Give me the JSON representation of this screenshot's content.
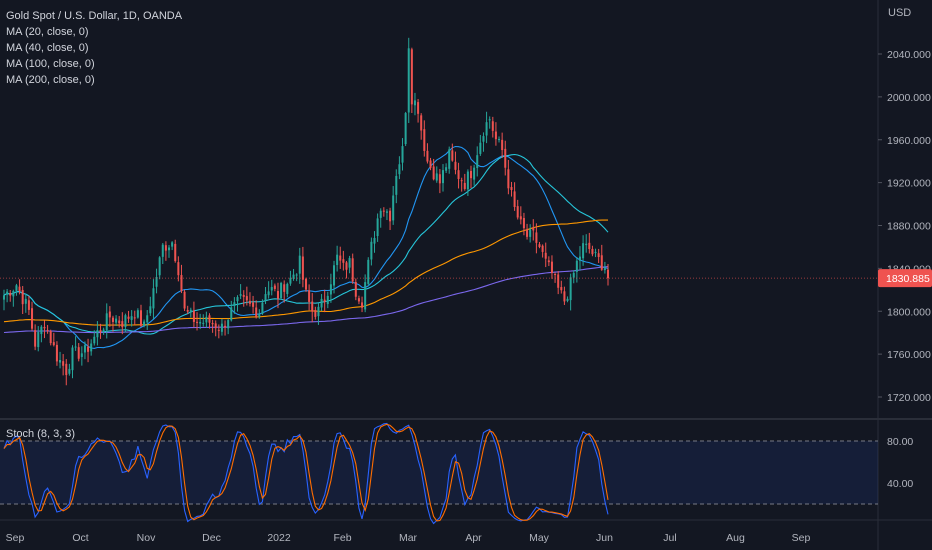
{
  "header": {
    "title": "Gold Spot / U.S. Dollar, 1D, OANDA",
    "indicators": [
      "MA (20, close, 0)",
      "MA (40, close, 0)",
      "MA (100, close, 0)",
      "MA (200, close, 0)"
    ]
  },
  "price_axis": {
    "currency": "USD",
    "current_price_label": "1830.885"
  },
  "stoch_pane": {
    "label": "Stoch (8, 3, 3)"
  },
  "chart_data": [
    {
      "type": "candlestick",
      "title": "Gold Spot / U.S. Dollar, 1D, OANDA",
      "y_unit": "USD",
      "y_ticks": [
        1720,
        1760,
        1800,
        1840,
        1880,
        1920,
        1960,
        2000,
        2040
      ],
      "y_tick_labels": [
        "1720.000",
        "1760.000",
        "1800.000",
        "1840.000",
        "1880.000",
        "1920.000",
        "1960.000",
        "2000.000",
        "2040.000"
      ],
      "ylim": [
        1700,
        2080
      ],
      "x_labels": [
        "Sep",
        "Oct",
        "Nov",
        "Dec",
        "2022",
        "Feb",
        "Mar",
        "Apr",
        "May",
        "Jun",
        "Jul",
        "Aug",
        "Sep"
      ],
      "last_price": 1830.885,
      "close_path": [
        [
          0,
          1815
        ],
        [
          4,
          1825
        ],
        [
          8,
          1800
        ],
        [
          10,
          1770
        ],
        [
          13,
          1790
        ],
        [
          17,
          1758
        ],
        [
          20,
          1745
        ],
        [
          22,
          1760
        ],
        [
          26,
          1762
        ],
        [
          30,
          1780
        ],
        [
          34,
          1795
        ],
        [
          38,
          1790
        ],
        [
          42,
          1800
        ],
        [
          45,
          1785
        ],
        [
          48,
          1820
        ],
        [
          51,
          1860
        ],
        [
          54,
          1865
        ],
        [
          56,
          1840
        ],
        [
          58,
          1800
        ],
        [
          62,
          1790
        ],
        [
          66,
          1790
        ],
        [
          70,
          1785
        ],
        [
          73,
          1800
        ],
        [
          76,
          1810
        ],
        [
          79,
          1805
        ],
        [
          82,
          1800
        ],
        [
          84,
          1820
        ],
        [
          86,
          1820
        ],
        [
          88,
          1815
        ],
        [
          90,
          1825
        ],
        [
          92,
          1830
        ],
        [
          95,
          1845
        ],
        [
          97,
          1815
        ],
        [
          99,
          1800
        ],
        [
          101,
          1800
        ],
        [
          103,
          1812
        ],
        [
          105,
          1830
        ],
        [
          107,
          1850
        ],
        [
          109,
          1840
        ],
        [
          111,
          1845
        ],
        [
          113,
          1820
        ],
        [
          115,
          1810
        ],
        [
          118,
          1860
        ],
        [
          121,
          1900
        ],
        [
          124,
          1890
        ],
        [
          126,
          1930
        ],
        [
          128,
          1950
        ],
        [
          129,
          1990
        ],
        [
          130,
          2050
        ],
        [
          131,
          2000
        ],
        [
          133,
          1990
        ],
        [
          134,
          1970
        ],
        [
          136,
          1940
        ],
        [
          138,
          1930
        ],
        [
          140,
          1920
        ],
        [
          143,
          1945
        ],
        [
          145,
          1930
        ],
        [
          148,
          1920
        ],
        [
          150,
          1930
        ],
        [
          152,
          1950
        ],
        [
          154,
          1970
        ],
        [
          156,
          1980
        ],
        [
          158,
          1960
        ],
        [
          160,
          1950
        ],
        [
          162,
          1920
        ],
        [
          164,
          1895
        ],
        [
          166,
          1880
        ],
        [
          168,
          1870
        ],
        [
          170,
          1870
        ],
        [
          172,
          1860
        ],
        [
          174,
          1845
        ],
        [
          176,
          1835
        ],
        [
          178,
          1820
        ],
        [
          180,
          1810
        ],
        [
          182,
          1825
        ],
        [
          184,
          1845
        ],
        [
          186,
          1860
        ],
        [
          188,
          1858
        ],
        [
          190,
          1850
        ],
        [
          192,
          1845
        ],
        [
          193,
          1842
        ],
        [
          194,
          1831
        ]
      ],
      "series": [
        {
          "name": "MA (20, close, 0)",
          "color": "#2196f3"
        },
        {
          "name": "MA (40, close, 0)",
          "color": "#26c6da"
        },
        {
          "name": "MA (100, close, 0)",
          "color": "#ff9800"
        },
        {
          "name": "MA (200, close, 0)",
          "color": "#7b68ee"
        }
      ]
    },
    {
      "type": "line",
      "title": "Stoch (8, 3, 3)",
      "y_ticks": [
        40,
        80
      ],
      "y_tick_labels": [
        "40.00",
        "80.00"
      ],
      "bands": [
        20,
        80
      ],
      "ylim": [
        0,
        100
      ],
      "series": [
        {
          "color": "#2962ff"
        },
        {
          "color": "#ff6d00"
        }
      ]
    }
  ]
}
